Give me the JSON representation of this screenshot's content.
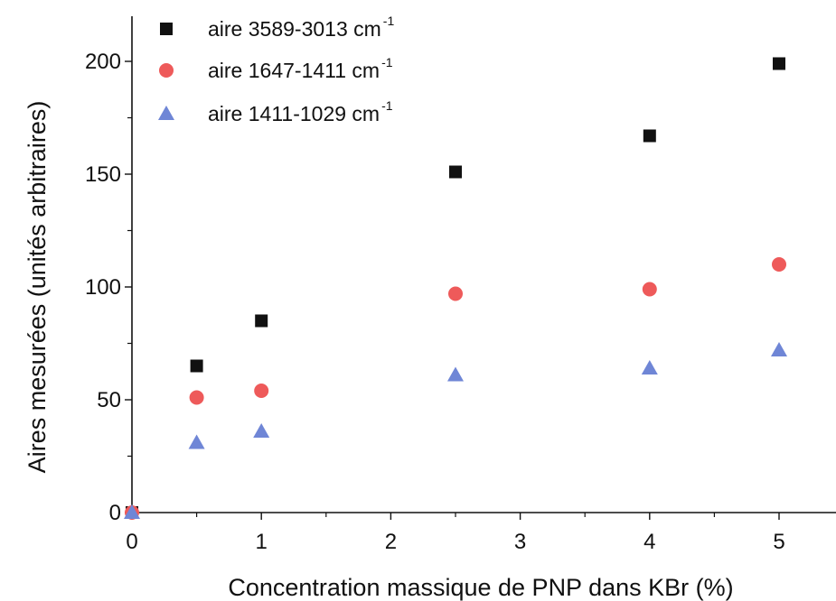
{
  "chart_data": {
    "type": "scatter",
    "xlabel": "Concentration massique de PNP dans KBr (%)",
    "ylabel": "Aires mesurées (unités arbitraires)",
    "xlim": [
      0,
      5.5
    ],
    "ylim": [
      0,
      200
    ],
    "xticks": [
      "0",
      "1",
      "2",
      "3",
      "4",
      "5"
    ],
    "yticks": [
      "0",
      "50",
      "100",
      "150",
      "200"
    ],
    "grid": false,
    "legend_position": "top-left",
    "series": [
      {
        "name": "aire 3589-3013 cm",
        "name_sup": "-1",
        "marker": "square",
        "color": "#111111",
        "x": [
          0,
          0.5,
          1,
          2.5,
          4,
          5
        ],
        "y": [
          0,
          65,
          85,
          151,
          167,
          199
        ]
      },
      {
        "name": "aire 1647-1411 cm",
        "name_sup": "-1",
        "marker": "circle",
        "color": "#ee5a5a",
        "x": [
          0,
          0.5,
          1,
          2.5,
          4,
          5
        ],
        "y": [
          0,
          51,
          54,
          97,
          99,
          110
        ]
      },
      {
        "name": "aire 1411-1029 cm",
        "name_sup": "-1",
        "marker": "triangle",
        "color": "#6f86d6",
        "x": [
          0,
          0.5,
          1,
          2.5,
          4,
          5
        ],
        "y": [
          0,
          31,
          36,
          61,
          64,
          72
        ]
      }
    ]
  }
}
